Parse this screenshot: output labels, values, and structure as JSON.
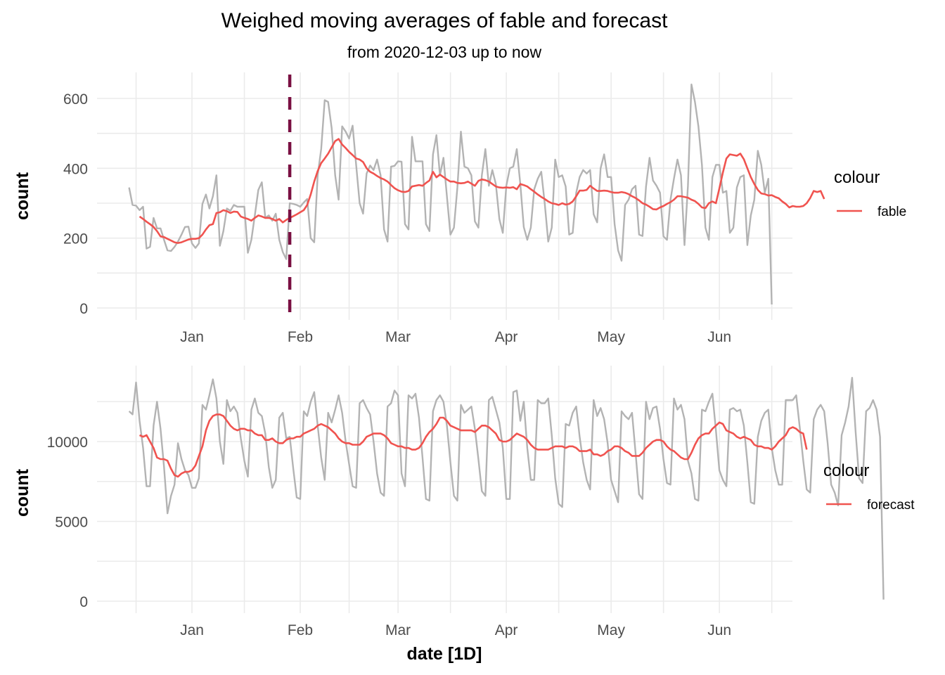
{
  "chart_data": [
    {
      "type": "line",
      "panel": "top",
      "title": "Weighed moving averages of fable and forecast",
      "subtitle": "from 2020-12-03 up to now",
      "xlabel": "",
      "ylabel": "count",
      "x_start": "2020-12-14",
      "x_tick_labels": [
        "Jan",
        "Feb",
        "Mar",
        "Apr",
        "May",
        "Jun"
      ],
      "x_tick_dates": [
        "2021-01-01",
        "2021-02-01",
        "2021-03-01",
        "2021-04-01",
        "2021-05-01",
        "2021-06-01"
      ],
      "y_ticks": [
        0,
        200,
        400,
        600
      ],
      "ylim": [
        -30,
        670
      ],
      "grid": true,
      "vline": {
        "date": "2021-01-29",
        "style": "dashed",
        "color": "#7a1042"
      },
      "legend": {
        "title": "colour",
        "position": "right",
        "entries": [
          {
            "label": "fable",
            "color": "#f0534f"
          }
        ]
      },
      "series": [
        {
          "name": "raw",
          "color": "#b3b3b3",
          "values": [
            345,
            295,
            293,
            280,
            290,
            170,
            175,
            258,
            228,
            228,
            195,
            165,
            163,
            175,
            190,
            210,
            232,
            233,
            185,
            172,
            185,
            298,
            325,
            285,
            320,
            380,
            178,
            220,
            285,
            278,
            295,
            290,
            290,
            290,
            158,
            195,
            265,
            338,
            360,
            258,
            265,
            250,
            270,
            195,
            160,
            140,
            300,
            298,
            295,
            290,
            302,
            312,
            200,
            188,
            380,
            455,
            595,
            590,
            515,
            380,
            310,
            520,
            505,
            485,
            522,
            410,
            300,
            270,
            385,
            408,
            395,
            425,
            380,
            225,
            190,
            405,
            407,
            420,
            419,
            240,
            225,
            490,
            420,
            420,
            420,
            240,
            220,
            440,
            495,
            380,
            430,
            320,
            210,
            230,
            345,
            505,
            405,
            400,
            380,
            248,
            230,
            380,
            455,
            350,
            395,
            355,
            255,
            215,
            350,
            400,
            405,
            455,
            355,
            232,
            195,
            230,
            340,
            370,
            390,
            300,
            190,
            230,
            425,
            375,
            380,
            348,
            210,
            215,
            330,
            375,
            395,
            385,
            395,
            268,
            245,
            400,
            440,
            375,
            375,
            240,
            165,
            135,
            295,
            310,
            340,
            350,
            210,
            206,
            348,
            430,
            365,
            350,
            330,
            205,
            195,
            310,
            370,
            425,
            380,
            180,
            350,
            640,
            590,
            520,
            410,
            230,
            195,
            375,
            410,
            410,
            330,
            335,
            215,
            230,
            345,
            375,
            380,
            180,
            265,
            310,
            450,
            410,
            330,
            370,
            10
          ]
        },
        {
          "name": "fable",
          "color": "#f0534f",
          "values": [
            262,
            255,
            247,
            240,
            232,
            220,
            205,
            203,
            198,
            193,
            188,
            186,
            188,
            192,
            196,
            198,
            198,
            200,
            210,
            225,
            237,
            240,
            272,
            274,
            280,
            277,
            272,
            276,
            275,
            262,
            258,
            255,
            250,
            258,
            265,
            262,
            258,
            258,
            255,
            250,
            255,
            245,
            252,
            258,
            263,
            268,
            274,
            280,
            295,
            325,
            362,
            392,
            415,
            428,
            442,
            460,
            478,
            484,
            468,
            458,
            447,
            438,
            428,
            425,
            418,
            400,
            390,
            385,
            378,
            372,
            368,
            362,
            352,
            343,
            337,
            333,
            332,
            335,
            348,
            350,
            352,
            350,
            358,
            365,
            390,
            374,
            382,
            375,
            368,
            362,
            362,
            358,
            357,
            358,
            362,
            356,
            350,
            364,
            368,
            366,
            362,
            355,
            348,
            345,
            344,
            345,
            344,
            346,
            340,
            355,
            352,
            348,
            340,
            333,
            325,
            318,
            312,
            305,
            300,
            298,
            295,
            300,
            296,
            298,
            305,
            320,
            336,
            336,
            338,
            350,
            342,
            335,
            335,
            336,
            335,
            332,
            330,
            330,
            332,
            330,
            326,
            320,
            315,
            308,
            300,
            296,
            290,
            283,
            282,
            288,
            292,
            298,
            303,
            310,
            320,
            320,
            318,
            316,
            310,
            306,
            298,
            288,
            286,
            300,
            305,
            300,
            342,
            388,
            428,
            440,
            438,
            436,
            442,
            426,
            400,
            375,
            355,
            338,
            328,
            326,
            322,
            323,
            318,
            314,
            305,
            298,
            288,
            292,
            290,
            290,
            292,
            300,
            315,
            335,
            332,
            335,
            312
          ]
        }
      ]
    },
    {
      "type": "line",
      "panel": "bottom",
      "xlabel": "date [1D]",
      "ylabel": "count",
      "x_start": "2020-12-14",
      "x_tick_labels": [
        "Jan",
        "Feb",
        "Mar",
        "Apr",
        "May",
        "Jun"
      ],
      "x_tick_dates": [
        "2021-01-01",
        "2021-02-01",
        "2021-03-01",
        "2021-04-01",
        "2021-05-01",
        "2021-06-01"
      ],
      "y_ticks": [
        0,
        5000,
        10000
      ],
      "ylim": [
        -600,
        14800
      ],
      "grid": true,
      "legend": {
        "title": "colour",
        "position": "right",
        "entries": [
          {
            "label": "forecast",
            "color": "#f0534f"
          }
        ]
      },
      "series": [
        {
          "name": "raw",
          "color": "#b3b3b3",
          "values": [
            11900,
            11700,
            13700,
            11300,
            9600,
            7200,
            7200,
            11000,
            12500,
            10800,
            8400,
            5500,
            6600,
            7300,
            9900,
            8900,
            8200,
            7900,
            7100,
            7100,
            7700,
            12300,
            12000,
            12900,
            13900,
            12700,
            10000,
            8600,
            12600,
            11900,
            12200,
            11800,
            10200,
            8800,
            7800,
            12000,
            12700,
            11800,
            11600,
            10500,
            8400,
            7100,
            7600,
            11500,
            11800,
            10200,
            10300,
            8300,
            6500,
            6400,
            11900,
            11600,
            12500,
            13100,
            11000,
            9000,
            7600,
            11800,
            11200,
            12000,
            12900,
            11800,
            10000,
            8600,
            7200,
            7100,
            12400,
            12600,
            12100,
            11700,
            10000,
            8000,
            6800,
            6600,
            12200,
            12400,
            13200,
            12900,
            8000,
            7200,
            12900,
            12700,
            13000,
            11500,
            9000,
            6400,
            6300,
            11900,
            12600,
            12900,
            12500,
            11000,
            8700,
            6600,
            6300,
            12300,
            11800,
            12000,
            12200,
            10800,
            8900,
            6900,
            6600,
            12600,
            12800,
            12000,
            11200,
            9600,
            6400,
            6400,
            13100,
            13200,
            11300,
            12500,
            9600,
            7600,
            7600,
            12600,
            12400,
            12400,
            12700,
            10400,
            7700,
            6100,
            5900,
            11100,
            11000,
            11800,
            12200,
            10300,
            8700,
            7600,
            7000,
            12600,
            11600,
            12100,
            11400,
            9900,
            7600,
            6900,
            6200,
            11900,
            11600,
            11400,
            11800,
            9300,
            6700,
            6400,
            12500,
            11400,
            12100,
            12200,
            10800,
            8900,
            7400,
            7300,
            12700,
            12000,
            12300,
            11400,
            8800,
            8000,
            6400,
            6300,
            12000,
            11900,
            12500,
            13000,
            10700,
            8200,
            7600,
            7200,
            12000,
            12100,
            11900,
            12000,
            11000,
            8700,
            6200,
            6100,
            10300,
            11300,
            11800,
            12000,
            9600,
            8200,
            7300,
            7300,
            12600,
            12600,
            12600,
            12900,
            10900,
            8800,
            7000,
            6800,
            11400,
            12000,
            12300,
            11900,
            9900,
            7300,
            6800,
            6000,
            10400,
            11200,
            12200,
            14000,
            10600,
            7700,
            7400,
            11900,
            12100,
            12600,
            12000,
            10300,
            100
          ]
        },
        {
          "name": "forecast",
          "color": "#f0534f",
          "values": [
            10400,
            10300,
            10400,
            10000,
            9600,
            9000,
            8900,
            8900,
            8800,
            8300,
            7900,
            7800,
            8000,
            8100,
            8100,
            8200,
            8500,
            9100,
            9700,
            10700,
            11300,
            11600,
            11700,
            11700,
            11600,
            11300,
            11000,
            10800,
            10700,
            10800,
            10800,
            10700,
            10700,
            10500,
            10400,
            10400,
            10100,
            10100,
            10200,
            10000,
            9900,
            9900,
            10100,
            10200,
            10200,
            10300,
            10300,
            10500,
            10600,
            10700,
            10800,
            11000,
            11100,
            11000,
            10900,
            10700,
            10500,
            10200,
            10000,
            9900,
            9900,
            9800,
            9800,
            9800,
            10000,
            10300,
            10400,
            10500,
            10500,
            10500,
            10400,
            10200,
            9900,
            9800,
            9700,
            9700,
            9600,
            9600,
            9500,
            9500,
            9600,
            9900,
            10300,
            10600,
            10800,
            11100,
            11500,
            11500,
            11300,
            11000,
            10900,
            10800,
            10700,
            10700,
            10700,
            10700,
            10600,
            10800,
            11000,
            11000,
            10900,
            10700,
            10500,
            10100,
            10000,
            10000,
            10100,
            10300,
            10500,
            10400,
            10300,
            10100,
            9800,
            9600,
            9500,
            9500,
            9500,
            9500,
            9600,
            9700,
            9700,
            9700,
            9600,
            9700,
            9700,
            9600,
            9400,
            9400,
            9400,
            9500,
            9200,
            9200,
            9100,
            9200,
            9400,
            9500,
            9700,
            9700,
            9600,
            9400,
            9300,
            9100,
            9100,
            9100,
            9300,
            9600,
            9800,
            10000,
            10100,
            10100,
            10000,
            9700,
            9500,
            9400,
            9200,
            9000,
            8900,
            8900,
            9300,
            9800,
            10200,
            10400,
            10500,
            10500,
            10800,
            11000,
            11200,
            11100,
            10700,
            10600,
            10500,
            10300,
            10200,
            10300,
            10200,
            10100,
            9800,
            9700,
            9700,
            9600,
            9600,
            9500,
            9700,
            10000,
            10200,
            10400,
            10800,
            10900,
            10800,
            10600,
            10500,
            9500
          ]
        }
      ]
    }
  ]
}
